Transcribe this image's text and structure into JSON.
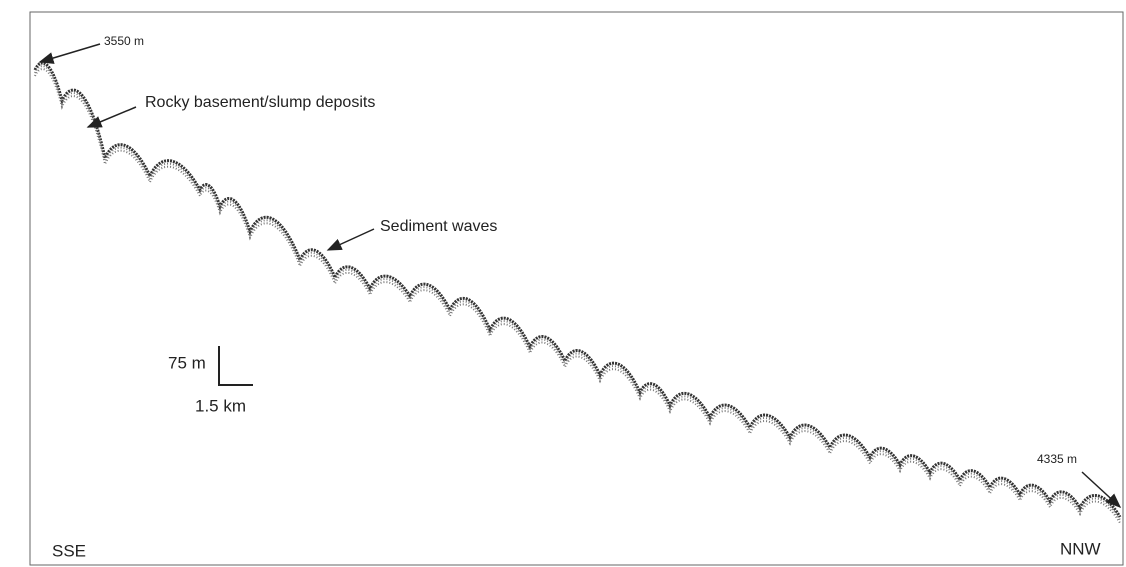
{
  "labels": {
    "top_depth": "3550 m",
    "rocky": "Rocky basement/slump deposits",
    "waves": "Sediment waves",
    "scale_vertical": "75 m",
    "scale_horizontal": "1.5 km",
    "bottom_depth": "4335 m",
    "left_direction": "SSE",
    "right_direction": "NNW"
  }
}
